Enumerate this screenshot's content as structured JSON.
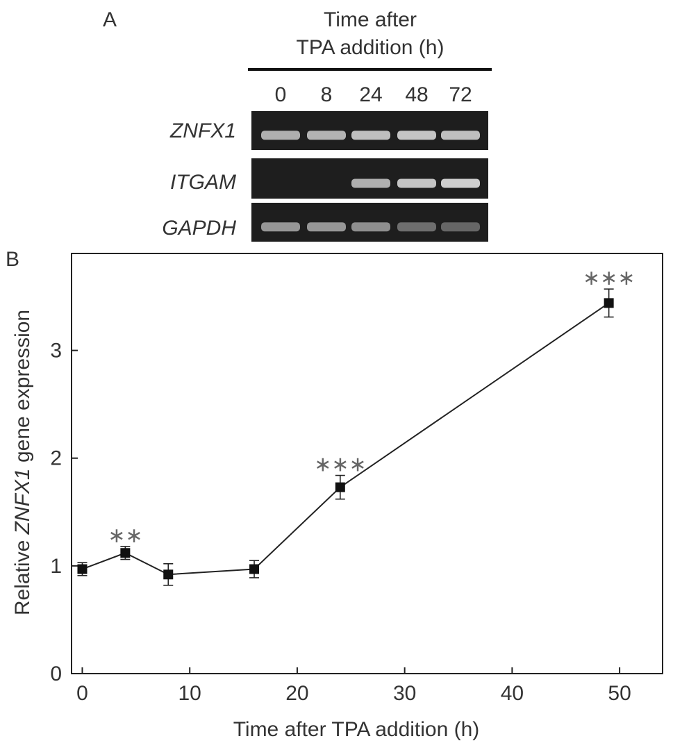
{
  "panel_a": {
    "label": "A",
    "header_line1": "Time after",
    "header_line2": "TPA addition (h)",
    "lanes": [
      "0",
      "8",
      "24",
      "48",
      "72"
    ],
    "rows": [
      {
        "gene": "ZNFX1",
        "band_intensity": [
          0.75,
          0.78,
          0.85,
          0.88,
          0.85
        ]
      },
      {
        "gene": "ITGAM",
        "band_intensity": [
          0.0,
          0.0,
          0.75,
          0.88,
          0.95
        ]
      },
      {
        "gene": "GAPDH",
        "band_intensity": [
          0.6,
          0.6,
          0.55,
          0.35,
          0.3
        ]
      }
    ]
  },
  "panel_b": {
    "label": "B"
  },
  "chart_data": {
    "type": "line",
    "ylabel_prefix": "Relative ",
    "ylabel_italic": "ZNFX1",
    "ylabel_suffix": " gene expression",
    "xlabel": "Time after TPA addition (h)",
    "xlim": [
      -1,
      54
    ],
    "ylim": [
      0,
      3.9
    ],
    "xticks": [
      0,
      10,
      20,
      30,
      40,
      50
    ],
    "yticks": [
      0,
      1,
      2,
      3
    ],
    "grid": false,
    "series": [
      {
        "x": [
          0,
          4,
          8,
          16,
          24,
          49
        ],
        "y": [
          0.97,
          1.12,
          0.92,
          0.97,
          1.73,
          3.44
        ],
        "error": [
          0.06,
          0.06,
          0.1,
          0.08,
          0.11,
          0.13
        ],
        "annotations": [
          "",
          "**",
          "",
          "",
          "***",
          "***"
        ]
      }
    ]
  }
}
